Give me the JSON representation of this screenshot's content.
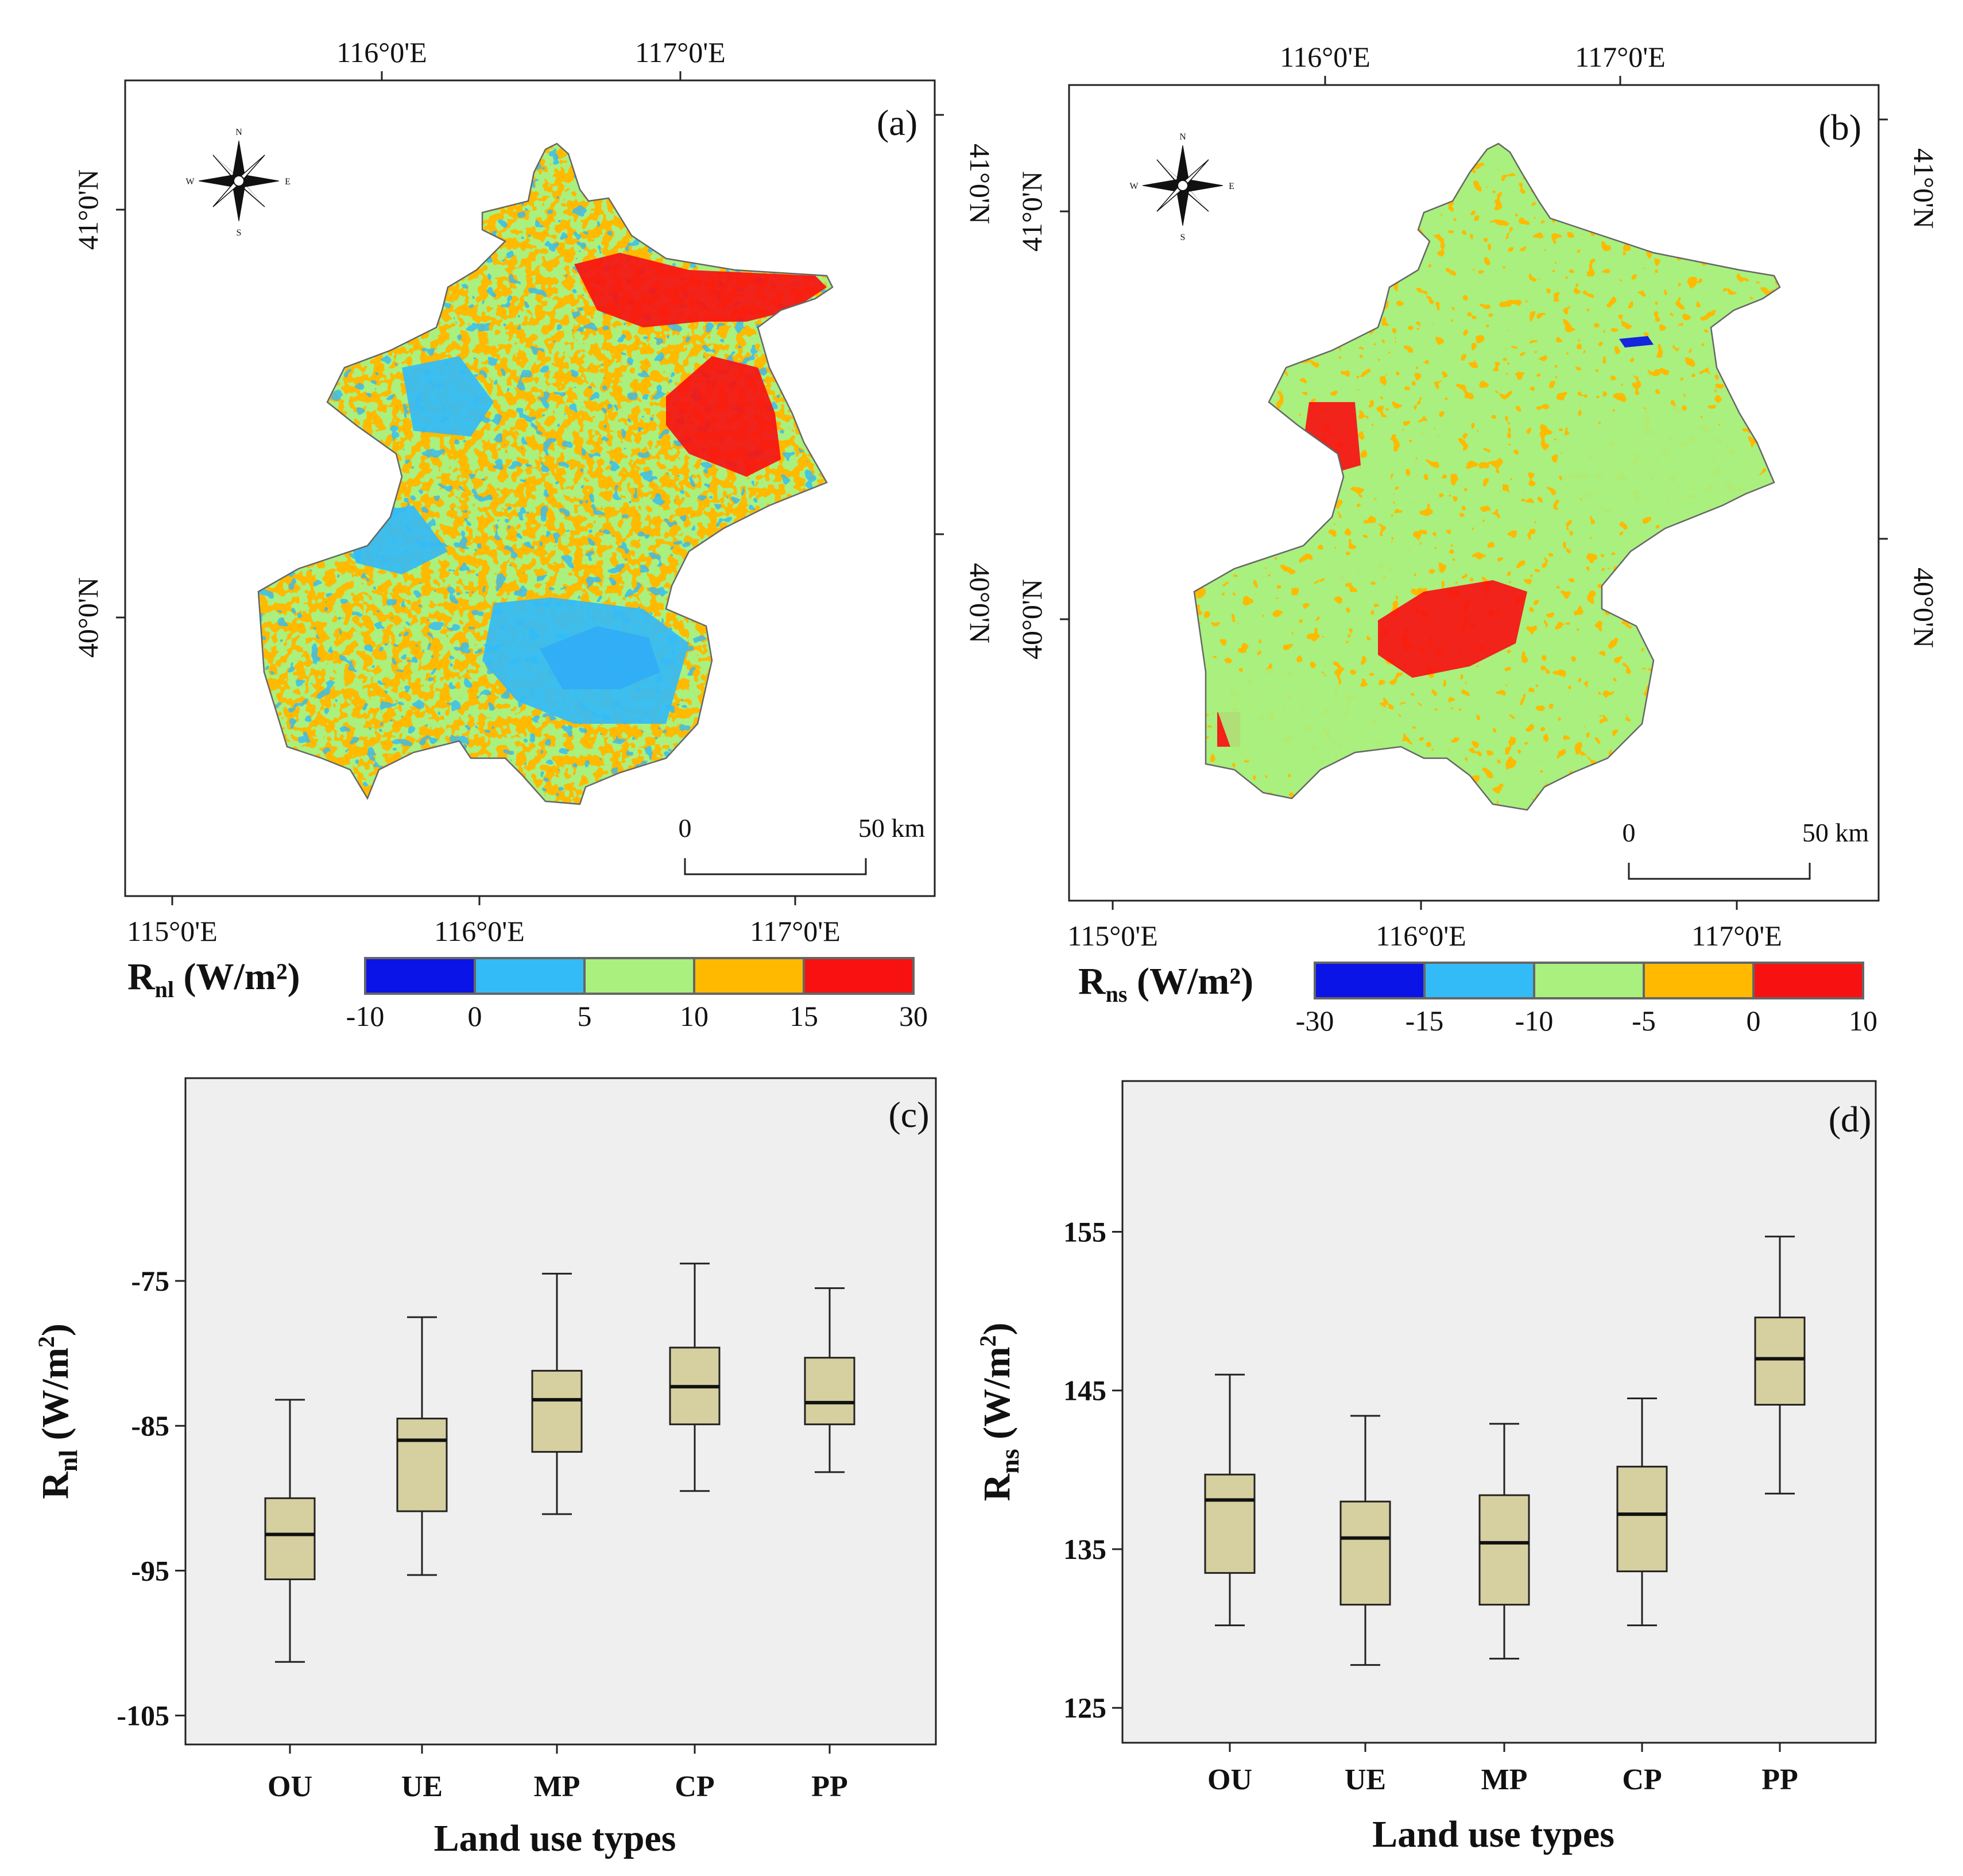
{
  "chart_data": [
    {
      "type": "heatmap",
      "panel_label": "(a)",
      "variable_main": "R",
      "variable_sub": "nl",
      "unit_text": " (W/m²)",
      "legend_breaks": [
        "-10",
        "0",
        "5",
        "10",
        "15",
        "30"
      ],
      "legend_colors": [
        "#0a14e6",
        "#33bbf7",
        "#a9f07e",
        "#ffba00",
        "#f71111"
      ],
      "top_lon_labels": [
        "116°0'E",
        "117°0'E"
      ],
      "bottom_lon_labels": [
        "115°0'E",
        "116°0'E",
        "117°0'E"
      ],
      "left_lat_labels": [
        "41°0'N",
        "40°0'N"
      ],
      "right_lat_labels": [
        "41°0'N",
        "40°0'N"
      ],
      "scale_bar": {
        "start": "0",
        "end": "50 km"
      },
      "compass": {
        "n": "N",
        "s": "S",
        "e": "E",
        "w": "W"
      }
    },
    {
      "type": "heatmap",
      "panel_label": "(b)",
      "variable_main": "R",
      "variable_sub": "ns",
      "unit_text": " (W/m²)",
      "legend_breaks": [
        "-30",
        "-15",
        "-10",
        "-5",
        "0",
        "10"
      ],
      "legend_colors": [
        "#0a14e6",
        "#33bbf7",
        "#a9f07e",
        "#ffba00",
        "#f71111"
      ],
      "top_lon_labels": [
        "116°0'E",
        "117°0'E"
      ],
      "bottom_lon_labels": [
        "115°0'E",
        "116°0'E",
        "117°0'E"
      ],
      "left_lat_labels": [
        "41°0'N",
        "40°0'N"
      ],
      "right_lat_labels": [
        "41°0'N",
        "40°0'N"
      ],
      "scale_bar": {
        "start": "0",
        "end": "50 km"
      },
      "compass": {
        "n": "N",
        "s": "S",
        "e": "E",
        "w": "W"
      }
    },
    {
      "type": "box",
      "panel_label": "(c)",
      "ylabel_main": "R",
      "ylabel_sub": "nl",
      "ylabel_unit": " (W/m",
      "ylabel_sup": "2",
      "ylabel_close": ")",
      "xlabel": "Land use types",
      "ylim": [
        -107,
        -61
      ],
      "yticks": [
        -75,
        -85,
        -95,
        -105
      ],
      "categories": [
        "OU",
        "UE",
        "MP",
        "CP",
        "PP"
      ],
      "boxes": [
        {
          "name": "OU",
          "whislo": -101.3,
          "q1": -95.6,
          "med": -92.5,
          "q3": -90.0,
          "whishi": -83.2
        },
        {
          "name": "UE",
          "whislo": -95.3,
          "q1": -90.9,
          "med": -86.0,
          "q3": -84.5,
          "whishi": -77.5
        },
        {
          "name": "MP",
          "whislo": -91.1,
          "q1": -86.8,
          "med": -83.2,
          "q3": -81.2,
          "whishi": -74.5
        },
        {
          "name": "CP",
          "whislo": -89.5,
          "q1": -84.9,
          "med": -82.3,
          "q3": -79.6,
          "whishi": -73.8
        },
        {
          "name": "PP",
          "whislo": -88.2,
          "q1": -84.9,
          "med": -83.4,
          "q3": -80.3,
          "whishi": -75.5
        }
      ],
      "box_color": "#d6cf9f"
    },
    {
      "type": "box",
      "panel_label": "(d)",
      "ylabel_main": "R",
      "ylabel_sub": "ns",
      "ylabel_unit": " (W/m",
      "ylabel_sup": "2",
      "ylabel_close": ")",
      "xlabel": "Land use types",
      "ylim": [
        122.8,
        164.5
      ],
      "yticks": [
        155,
        145,
        135,
        125
      ],
      "categories": [
        "OU",
        "UE",
        "MP",
        "CP",
        "PP"
      ],
      "boxes": [
        {
          "name": "OU",
          "whislo": 130.2,
          "q1": 133.5,
          "med": 138.1,
          "q3": 139.7,
          "whishi": 146.0
        },
        {
          "name": "UE",
          "whislo": 127.7,
          "q1": 131.5,
          "med": 135.7,
          "q3": 138.0,
          "whishi": 143.4
        },
        {
          "name": "MP",
          "whislo": 128.1,
          "q1": 131.5,
          "med": 135.4,
          "q3": 138.4,
          "whishi": 142.9
        },
        {
          "name": "CP",
          "whislo": 130.2,
          "q1": 133.6,
          "med": 137.2,
          "q3": 140.2,
          "whishi": 144.5
        },
        {
          "name": "PP",
          "whislo": 138.5,
          "q1": 144.1,
          "med": 147.0,
          "q3": 149.6,
          "whishi": 154.7
        }
      ],
      "box_color": "#d6cf9f"
    }
  ]
}
